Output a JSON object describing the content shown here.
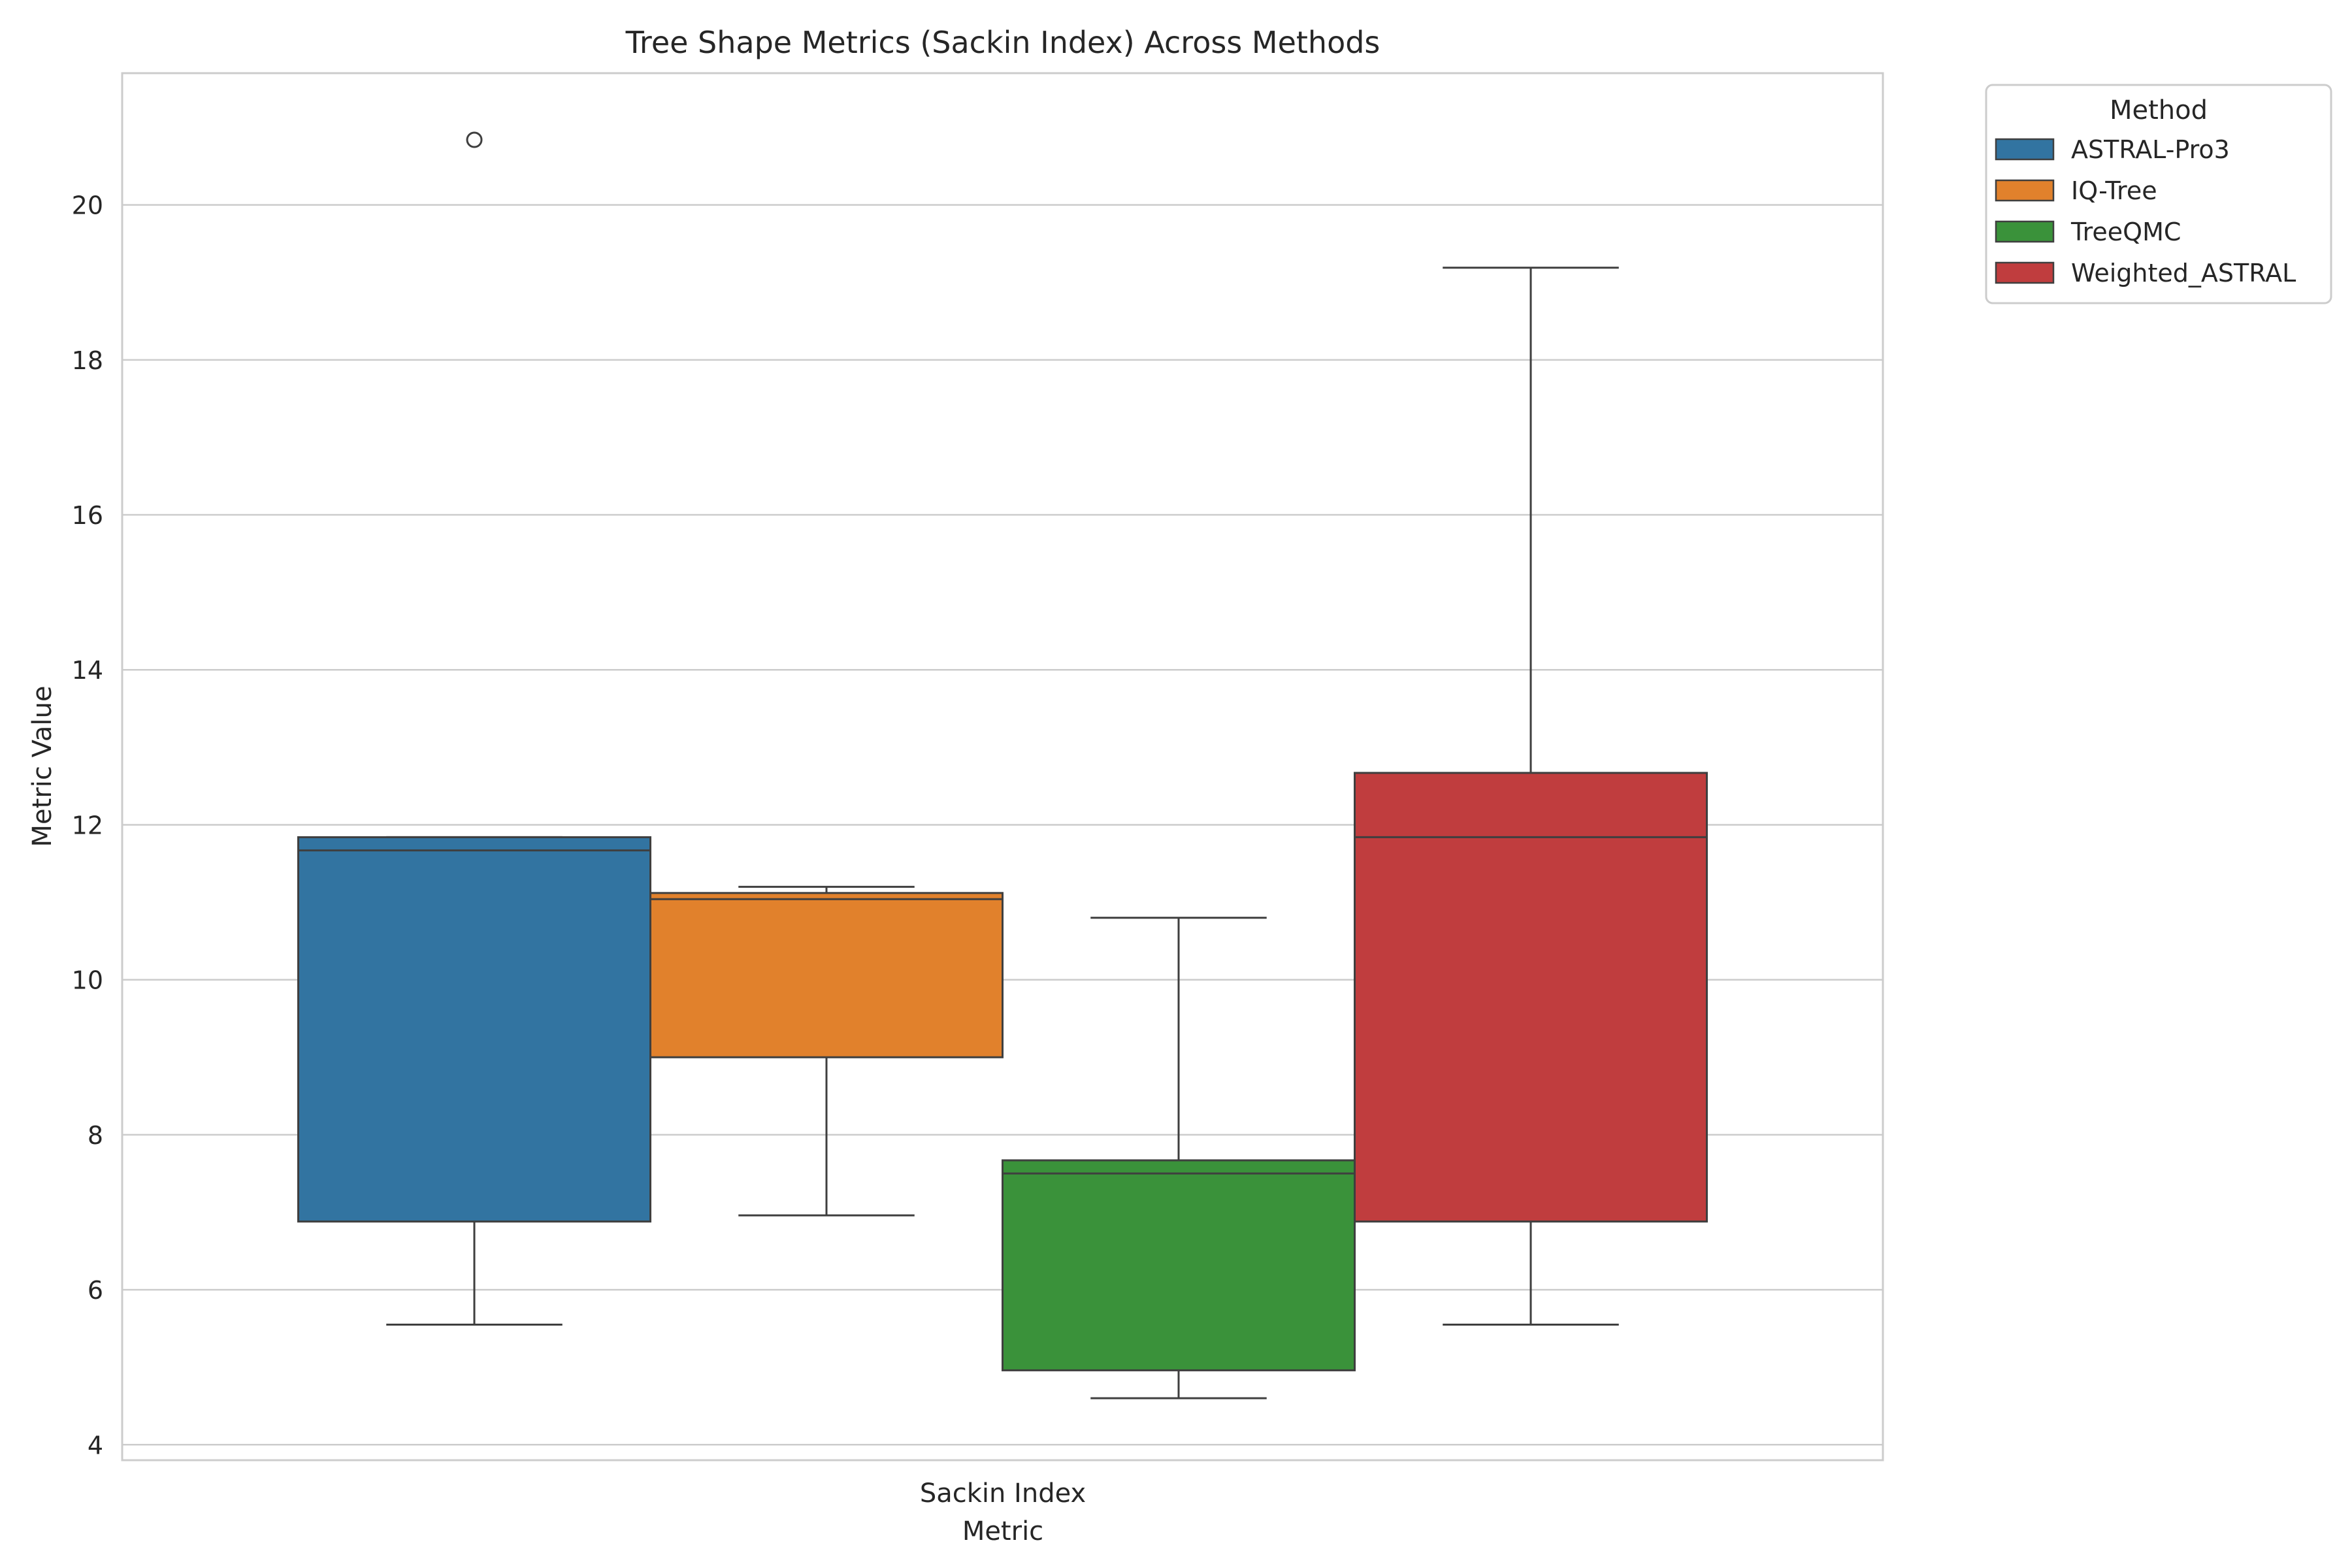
{
  "chart_data": {
    "type": "box",
    "title": "Tree Shape Metrics (Sackin Index) Across Methods",
    "xlabel": "Metric",
    "ylabel": "Metric Value",
    "categories": [
      "Sackin Index"
    ],
    "ylim": [
      3.8,
      21.7
    ],
    "yticks": [
      4,
      6,
      8,
      10,
      12,
      14,
      16,
      18,
      20
    ],
    "grid": true,
    "legend": {
      "title": "Method",
      "placement": "outside-top-right"
    },
    "series": [
      {
        "name": "ASTRAL-Pro3",
        "color": "#3274a1",
        "whisker_low": 5.55,
        "q1": 6.88,
        "median": 11.67,
        "q3": 11.84,
        "whisker_high": 11.84,
        "outliers": [
          20.84
        ]
      },
      {
        "name": "IQ-Tree",
        "color": "#e1812c",
        "whisker_low": 6.96,
        "q1": 9.0,
        "median": 11.04,
        "q3": 11.12,
        "whisker_high": 11.2,
        "outliers": []
      },
      {
        "name": "TreeQMC",
        "color": "#3a923a",
        "whisker_low": 4.6,
        "q1": 4.96,
        "median": 7.5,
        "q3": 7.67,
        "whisker_high": 10.8,
        "outliers": []
      },
      {
        "name": "Weighted_ASTRAL",
        "color": "#c03d3e",
        "whisker_low": 5.55,
        "q1": 6.88,
        "median": 11.84,
        "q3": 12.67,
        "whisker_high": 19.19,
        "outliers": []
      }
    ]
  }
}
